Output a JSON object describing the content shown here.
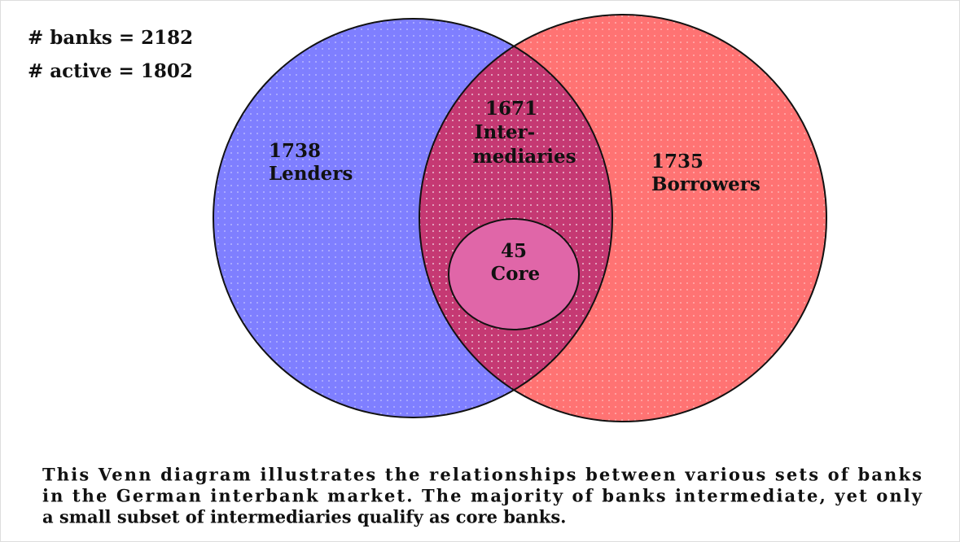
{
  "stats": [
    "# banks = 2182",
    "# active = 1802"
  ],
  "sets": {
    "lenders": {
      "count": "1738",
      "label": "Lenders"
    },
    "intermediaries": {
      "count": "1671",
      "label": [
        "Inter-",
        "mediaries"
      ]
    },
    "borrowers": {
      "count": "1735",
      "label": "Borrowers"
    },
    "core": {
      "count": "45",
      "label": "Core"
    }
  },
  "caption": [
    "This Venn diagram illustrates the relationships between various sets of banks",
    "in the German interbank market. The majority of banks intermediate, yet only",
    "a small subset of intermediaries qualify as core banks."
  ]
}
